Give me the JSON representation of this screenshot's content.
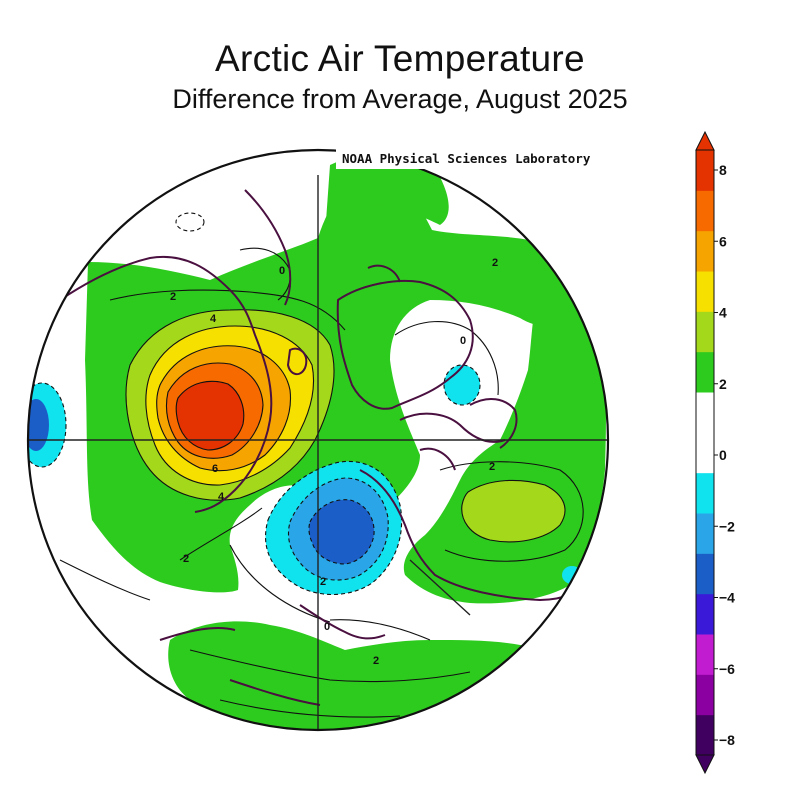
{
  "header": {
    "title": "Arctic Air Temperature",
    "subtitle": "Difference from Average, August 2025"
  },
  "map": {
    "credit": "NOAA Physical Sciences Laboratory",
    "contour_labels": [
      "2",
      "0",
      "4",
      "2",
      "0",
      "6",
      "4",
      "2",
      "2",
      "2",
      "0",
      "2"
    ]
  },
  "colorbar": {
    "labels": [
      "8",
      "6",
      "4",
      "2",
      "0",
      "−2",
      "−4",
      "−6",
      "−8"
    ],
    "colors": [
      "#400060",
      "#8a00a0",
      "#c21cd0",
      "#3a1ad8",
      "#1c5ec8",
      "#2aa6e8",
      "#10e2ee",
      "#ffffff",
      "#ffffff",
      "#2ecb1f",
      "#a4d81a",
      "#f5e000",
      "#f6a400",
      "#f66a00",
      "#e43200"
    ]
  }
}
